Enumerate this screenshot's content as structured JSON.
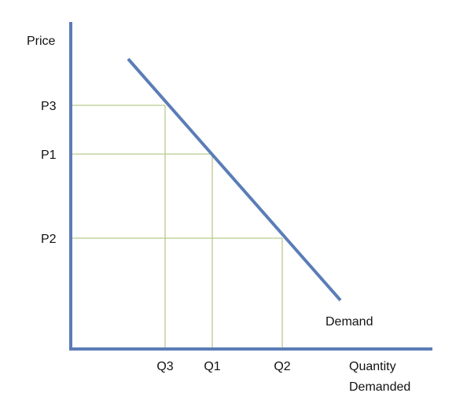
{
  "labels": {
    "y_axis": "Price",
    "x_axis_line1": "Quantity",
    "x_axis_line2": "Demanded",
    "curve": "Demand"
  },
  "price_levels": [
    {
      "label": "P3"
    },
    {
      "label": "P1"
    },
    {
      "label": "P2"
    }
  ],
  "quantity_levels": [
    {
      "label": "Q3"
    },
    {
      "label": "Q1"
    },
    {
      "label": "Q2"
    }
  ],
  "colors": {
    "axis": "#5b7db7",
    "demand_line": "#5b7db7",
    "guide_lines": "#b9c98e",
    "text": "#111111"
  }
}
